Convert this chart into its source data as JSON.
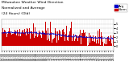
{
  "title_line1": "Milwaukee Weather Wind Direction",
  "title_line2": "Normalized and Average",
  "title_line3": "(24 Hours) (Old)",
  "bg_color": "#ffffff",
  "plot_bg_color": "#ffffff",
  "grid_color": "#cccccc",
  "bar_color": "#cc0000",
  "line_color": "#0000cc",
  "ylim": [
    -1,
    6
  ],
  "yticks": [
    0,
    1,
    2,
    3,
    4,
    5
  ],
  "n_points": 288,
  "title_fontsize": 3.2,
  "tick_fontsize": 2.5,
  "legend_fontsize": 2.8
}
